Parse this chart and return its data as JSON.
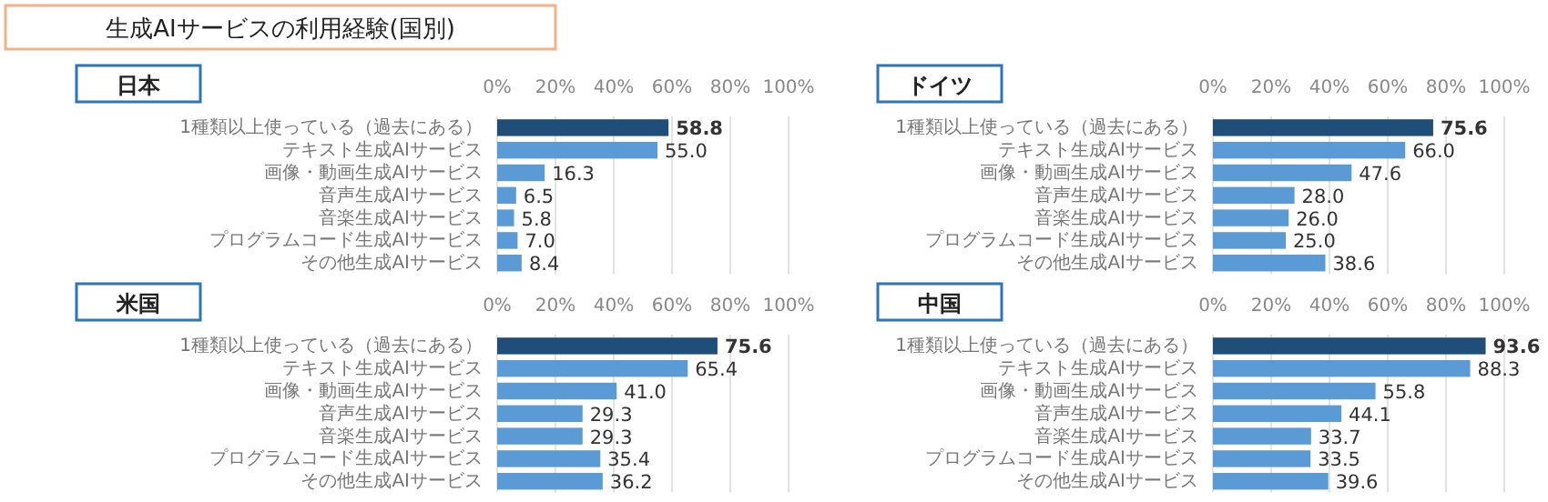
{
  "chart_data": [
    {
      "type": "other",
      "title": "生成AIサービスの利用経験(国別)"
    },
    {
      "type": "bar",
      "orientation": "horizontal",
      "title": "日本",
      "categories": [
        "1種類以上使っている（過去にある）",
        "テキスト生成AIサービス",
        "画像・動画生成AIサービス",
        "音声生成AIサービス",
        "音楽生成AIサービス",
        "プログラムコード生成AIサービス",
        "その他生成AIサービス"
      ],
      "values": [
        58.8,
        55.0,
        16.3,
        6.5,
        5.8,
        7.0,
        8.4
      ],
      "value_labels": [
        "58.8",
        "55.0",
        "16.3",
        "6.5",
        "5.8",
        "7.0",
        "8.4"
      ],
      "colors": [
        "#1f4e79",
        "#5b9bd5",
        "#5b9bd5",
        "#5b9bd5",
        "#5b9bd5",
        "#5b9bd5",
        "#5b9bd5"
      ],
      "xlim": [
        0,
        100
      ],
      "xticks": [
        {
          "value": 0,
          "label": "0%"
        },
        {
          "value": 20,
          "label": "20%"
        },
        {
          "value": 40,
          "label": "40%"
        },
        {
          "value": 60,
          "label": "60%"
        },
        {
          "value": 80,
          "label": "80%"
        },
        {
          "value": 100,
          "label": "100%"
        }
      ],
      "grid": "x"
    },
    {
      "type": "bar",
      "orientation": "horizontal",
      "title": "ドイツ",
      "categories": [
        "1種類以上使っている（過去にある）",
        "テキスト生成AIサービス",
        "画像・動画生成AIサービス",
        "音声生成AIサービス",
        "音楽生成AIサービス",
        "プログラムコード生成AIサービス",
        "その他生成AIサービス"
      ],
      "values": [
        75.6,
        66.0,
        47.6,
        28.0,
        26.0,
        25.0,
        38.6
      ],
      "value_labels": [
        "75.6",
        "66.0",
        "47.6",
        "28.0",
        "26.0",
        "25.0",
        "38.6"
      ],
      "colors": [
        "#1f4e79",
        "#5b9bd5",
        "#5b9bd5",
        "#5b9bd5",
        "#5b9bd5",
        "#5b9bd5",
        "#5b9bd5"
      ],
      "xlim": [
        0,
        100
      ],
      "xticks": [
        {
          "value": 0,
          "label": "0%"
        },
        {
          "value": 20,
          "label": "20%"
        },
        {
          "value": 40,
          "label": "40%"
        },
        {
          "value": 60,
          "label": "60%"
        },
        {
          "value": 80,
          "label": "80%"
        },
        {
          "value": 100,
          "label": "100%"
        }
      ],
      "grid": "x"
    },
    {
      "type": "bar",
      "orientation": "horizontal",
      "title": "米国",
      "categories": [
        "1種類以上使っている（過去にある）",
        "テキスト生成AIサービス",
        "画像・動画生成AIサービス",
        "音声生成AIサービス",
        "音楽生成AIサービス",
        "プログラムコード生成AIサービス",
        "その他生成AIサービス"
      ],
      "values": [
        75.6,
        65.4,
        41.0,
        29.3,
        29.3,
        35.4,
        36.2
      ],
      "value_labels": [
        "75.6",
        "65.4",
        "41.0",
        "29.3",
        "29.3",
        "35.4",
        "36.2"
      ],
      "colors": [
        "#1f4e79",
        "#5b9bd5",
        "#5b9bd5",
        "#5b9bd5",
        "#5b9bd5",
        "#5b9bd5",
        "#5b9bd5"
      ],
      "xlim": [
        0,
        100
      ],
      "xticks": [
        {
          "value": 0,
          "label": "0%"
        },
        {
          "value": 20,
          "label": "20%"
        },
        {
          "value": 40,
          "label": "40%"
        },
        {
          "value": 60,
          "label": "60%"
        },
        {
          "value": 80,
          "label": "80%"
        },
        {
          "value": 100,
          "label": "100%"
        }
      ],
      "grid": "x"
    },
    {
      "type": "bar",
      "orientation": "horizontal",
      "title": "中国",
      "categories": [
        "1種類以上使っている（過去にある）",
        "テキスト生成AIサービス",
        "画像・動画生成AIサービス",
        "音声生成AIサービス",
        "音楽生成AIサービス",
        "プログラムコード生成AIサービス",
        "その他生成AIサービス"
      ],
      "values": [
        93.6,
        88.3,
        55.8,
        44.1,
        33.7,
        33.5,
        39.6
      ],
      "value_labels": [
        "93.6",
        "88.3",
        "55.8",
        "44.1",
        "33.7",
        "33.5",
        "39.6"
      ],
      "colors": [
        "#1f4e79",
        "#5b9bd5",
        "#5b9bd5",
        "#5b9bd5",
        "#5b9bd5",
        "#5b9bd5",
        "#5b9bd5"
      ],
      "xlim": [
        0,
        100
      ],
      "xticks": [
        {
          "value": 0,
          "label": "0%"
        },
        {
          "value": 20,
          "label": "20%"
        },
        {
          "value": 40,
          "label": "40%"
        },
        {
          "value": 60,
          "label": "60%"
        },
        {
          "value": 80,
          "label": "80%"
        },
        {
          "value": 100,
          "label": "100%"
        }
      ],
      "grid": "x"
    }
  ]
}
